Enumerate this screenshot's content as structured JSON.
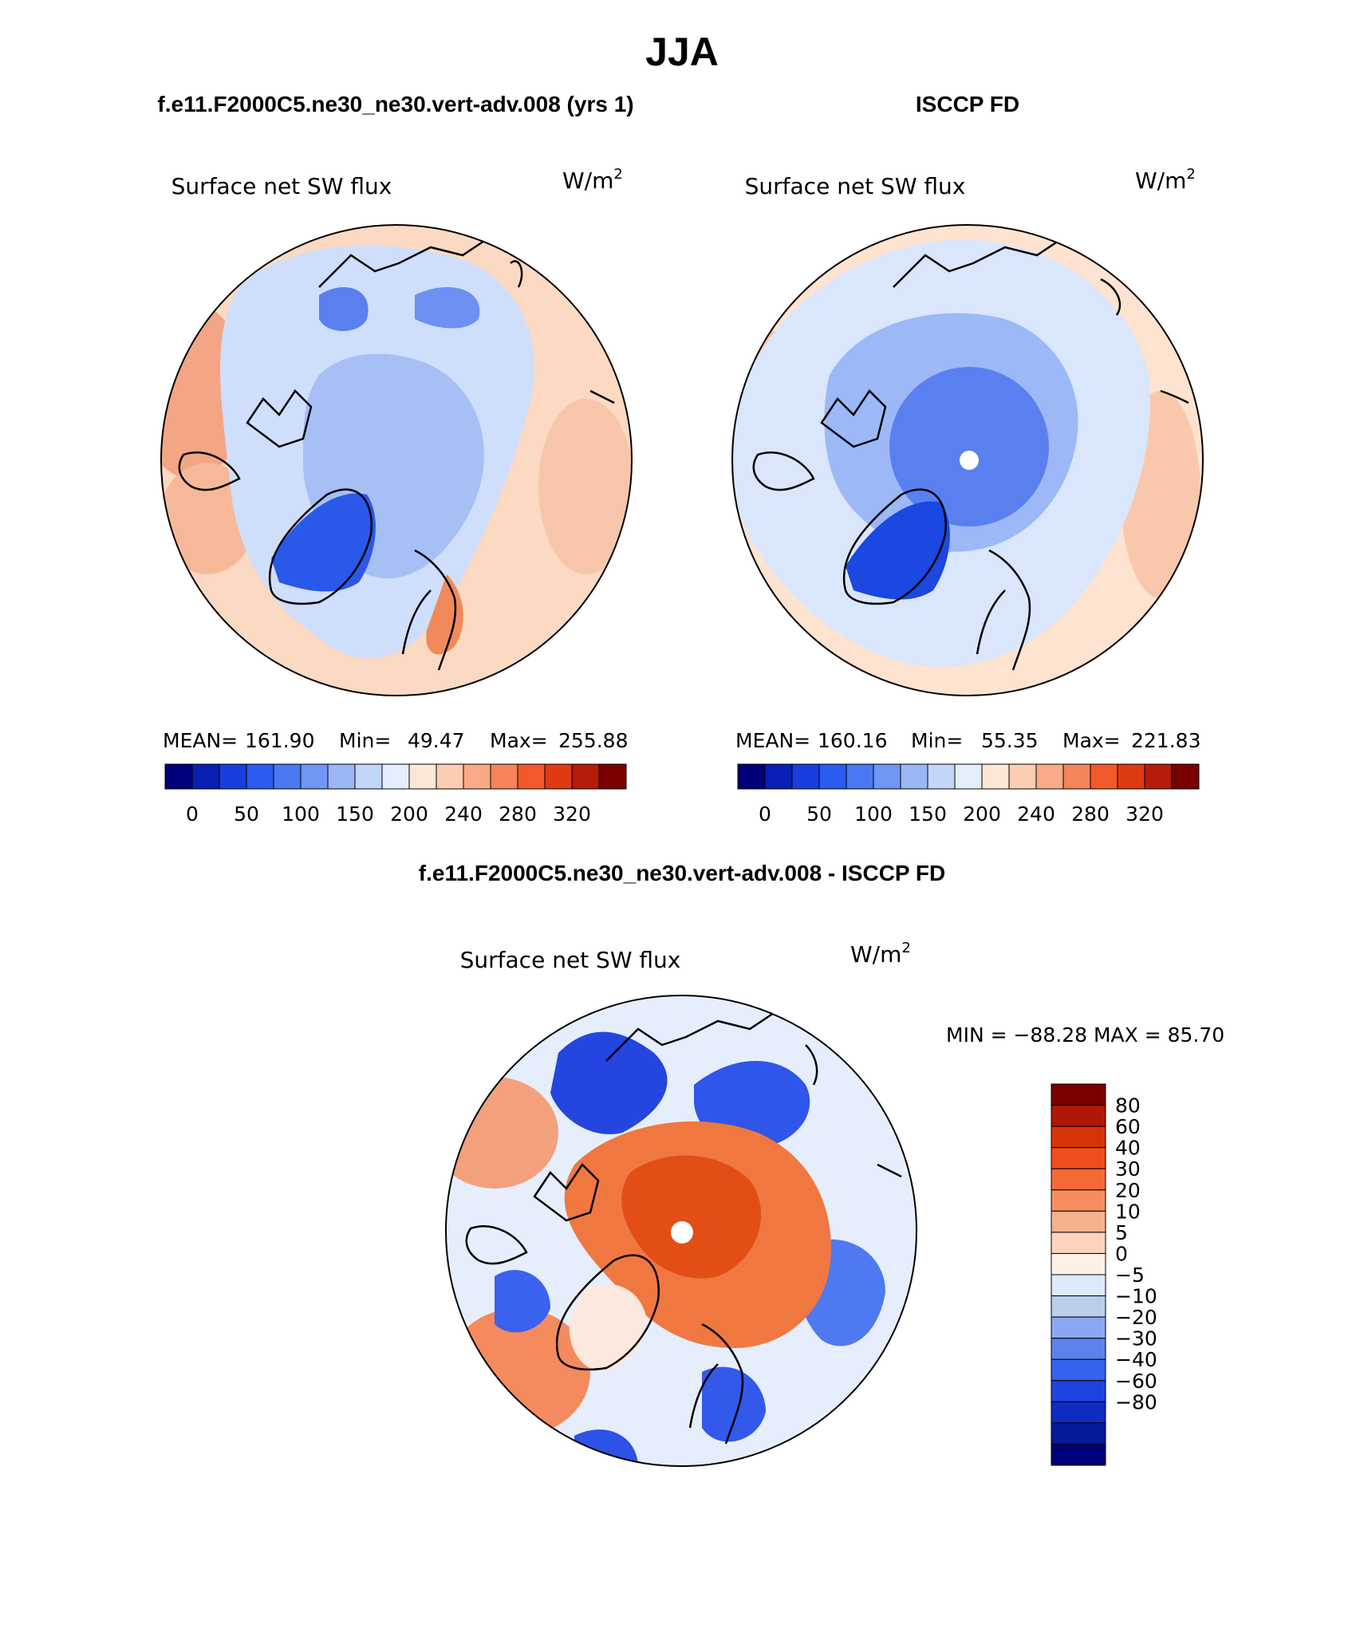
{
  "page_title": "JJA",
  "panels": [
    {
      "header": "f.e11.F2000C5.ne30_ne30.vert-adv.008 (yrs 1)",
      "variable": "Surface net SW flux",
      "units_base": "W/m",
      "units_exp": "2",
      "stats": {
        "mean_label": "MEAN=",
        "mean": "161.90",
        "min_label": "Min=",
        "min": "49.47",
        "max_label": "Max=",
        "max": "255.88"
      },
      "colorbar_ticks": [
        "0",
        "50",
        "100",
        "150",
        "200",
        "240",
        "280",
        "320"
      ],
      "ocean_fill": "#fbd9c2",
      "interior_fill": "#a6bff5",
      "greenland_fill": "#2a58e8",
      "pole_marker": false
    },
    {
      "header": "ISCCP FD",
      "variable": "Surface net SW flux",
      "units_base": "W/m",
      "units_exp": "2",
      "stats": {
        "mean_label": "MEAN=",
        "mean": "160.16",
        "min_label": "Min=",
        "min": "55.35",
        "max_label": "Max=",
        "max": "221.83"
      },
      "colorbar_ticks": [
        "0",
        "50",
        "100",
        "150",
        "200",
        "240",
        "280",
        "320"
      ],
      "ocean_fill": "#fde3d0",
      "interior_fill": "#5a80f0",
      "greenland_fill": "#1a48e0",
      "pole_marker": true
    },
    {
      "header": "f.e11.F2000C5.ne30_ne30.vert-adv.008 - ISCCP FD",
      "variable": "Surface net SW flux",
      "units_base": "W/m",
      "units_exp": "2",
      "minmax_text": "MIN = −88.28 MAX =  85.70",
      "pole_marker": true
    }
  ],
  "abs_colorbar_colors": [
    "#00007a",
    "#0a1fb4",
    "#1a3de0",
    "#2a5cf0",
    "#4a78f2",
    "#6f96f4",
    "#9ab6f7",
    "#c2d6fa",
    "#e4eefd",
    "#fde6d6",
    "#fbcdb2",
    "#f8aa88",
    "#f5845a",
    "#f2592a",
    "#e03a12",
    "#b51c0a",
    "#7a0000"
  ],
  "diff_colorbar": {
    "labels": [
      "80",
      "60",
      "40",
      "30",
      "20",
      "10",
      "5",
      "0",
      "−5",
      "−10",
      "−20",
      "−30",
      "−40",
      "−60",
      "−80"
    ],
    "colors_top_to_bottom": [
      "#7a0000",
      "#b01806",
      "#d8340a",
      "#ef4d1c",
      "#f56a34",
      "#f78c5c",
      "#f9b08c",
      "#fcd4bc",
      "#fdf0e6",
      "#ddeafd",
      "#b8ceea",
      "#8aa8f2",
      "#5c82ee",
      "#3462ec",
      "#1c44e0",
      "#0c2cc2",
      "#041a9a",
      "#00007a"
    ]
  }
}
